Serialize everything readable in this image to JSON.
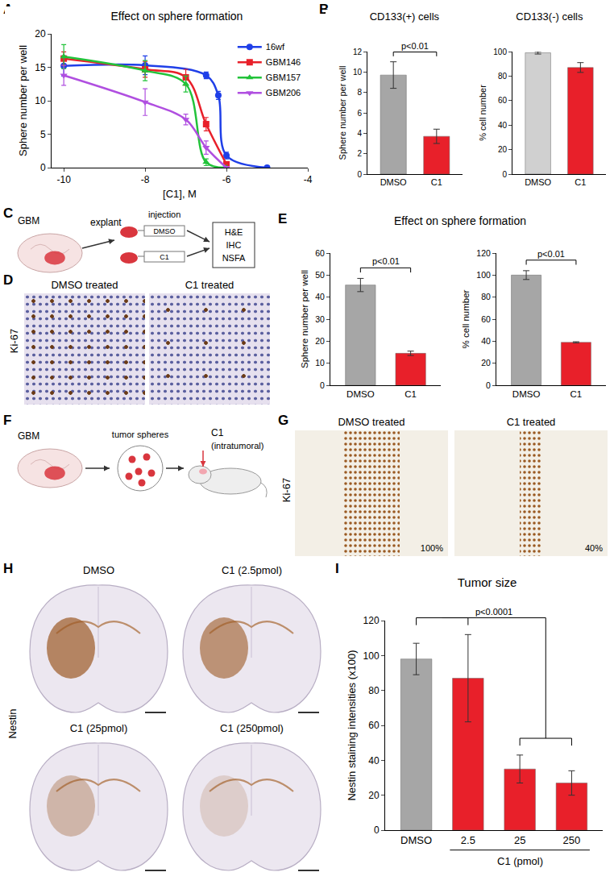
{
  "chart_data": [
    {
      "panel": "A",
      "type": "line",
      "title": "Effect on sphere formation",
      "x_label": "[C1], M",
      "y_label": "Sphere number per well",
      "xlim": [
        -10.3,
        -4
      ],
      "xticks": [
        -10,
        -8,
        -6,
        -4
      ],
      "ylim": [
        0,
        20
      ],
      "yticks": [
        0,
        5,
        10,
        15,
        20
      ],
      "grid": false,
      "legend": "upper right",
      "series": [
        {
          "name": "16wf",
          "color": "#1f3fe8",
          "marker": "circle",
          "x": [
            -10,
            -8,
            -6.5,
            -6.2,
            -6,
            -5
          ],
          "values": [
            15.2,
            15.3,
            13.8,
            10.8,
            1.8,
            0
          ],
          "errors": [
            1.5,
            1.4,
            0.5,
            0.6,
            0.5,
            0
          ]
        },
        {
          "name": "GBM146",
          "color": "#e8202a",
          "marker": "square",
          "x": [
            -10,
            -8,
            -7,
            -6.5,
            -6
          ],
          "values": [
            16.3,
            14.7,
            13.5,
            6.5,
            0.5
          ],
          "errors": [
            1,
            1.2,
            1.2,
            1,
            0.3
          ]
        },
        {
          "name": "GBM157",
          "color": "#22c33a",
          "marker": "triangle-up",
          "x": [
            -10,
            -8,
            -7,
            -6.5,
            -6
          ],
          "values": [
            16.6,
            14.5,
            12.5,
            0.8,
            0
          ],
          "errors": [
            1.8,
            1.5,
            1.2,
            0.5,
            0
          ]
        },
        {
          "name": "GBM206",
          "color": "#b04fe0",
          "marker": "triangle-down",
          "x": [
            -10,
            -8,
            -7,
            -6.5,
            -6
          ],
          "values": [
            13.8,
            9.8,
            7.2,
            3,
            0
          ],
          "errors": [
            1.5,
            2,
            0.8,
            1,
            0
          ]
        }
      ]
    },
    {
      "panel": "B",
      "type": "bar",
      "title": "CD133(+) cells",
      "y_label": "Sphere number per well",
      "categories": [
        "DMSO",
        "C1"
      ],
      "values": [
        9.7,
        3.7
      ],
      "errors": [
        1.3,
        0.7
      ],
      "colors": [
        "#a6a6a6",
        "#e8202a"
      ],
      "ylim": [
        0,
        12
      ],
      "yticks": [
        0,
        2,
        4,
        6,
        8,
        10,
        12
      ],
      "grid": false,
      "significance": [
        {
          "text": "p<0.01",
          "from": [
            "DMSO"
          ],
          "to": [
            "C1"
          ]
        }
      ]
    },
    {
      "panel": "B",
      "type": "bar",
      "title": "CD133(-) cells",
      "y_label": "% cell number",
      "categories": [
        "DMSO",
        "C1"
      ],
      "values": [
        99,
        87
      ],
      "errors": [
        1,
        4
      ],
      "colors": [
        "#d0d0d0",
        "#e8202a"
      ],
      "ylim": [
        0,
        100
      ],
      "yticks": [
        0,
        20,
        40,
        60,
        80,
        100
      ],
      "grid": false
    },
    {
      "panel": "E",
      "type": "bar",
      "title": "Effect on sphere formation",
      "y_label": "Sphere number per well",
      "categories": [
        "DMSO",
        "C1"
      ],
      "values": [
        45.5,
        14.5
      ],
      "errors": [
        3,
        1
      ],
      "colors": [
        "#a6a6a6",
        "#e8202a"
      ],
      "ylim": [
        0,
        60
      ],
      "yticks": [
        0,
        10,
        20,
        30,
        40,
        50,
        60
      ],
      "grid": false,
      "significance": [
        {
          "text": "p<0.01",
          "from": [
            "DMSO"
          ],
          "to": [
            "C1"
          ]
        }
      ]
    },
    {
      "panel": "E",
      "type": "bar",
      "y_label": "% cell number",
      "categories": [
        "DMSO",
        "C1"
      ],
      "values": [
        100,
        39
      ],
      "errors": [
        4,
        0.5
      ],
      "colors": [
        "#a6a6a6",
        "#e8202a"
      ],
      "ylim": [
        0,
        120
      ],
      "yticks": [
        0,
        20,
        40,
        60,
        80,
        100,
        120
      ],
      "grid": false,
      "significance": [
        {
          "text": "p<0.01",
          "from": [
            "DMSO"
          ],
          "to": [
            "C1"
          ]
        }
      ]
    },
    {
      "panel": "I",
      "type": "bar",
      "title": "Tumor size",
      "y_label": "Nestin staining intensities (x100)",
      "x_label": "C1 (pmol)",
      "x_label_span": [
        "2.5",
        "250"
      ],
      "categories": [
        "DMSO",
        "2.5",
        "25",
        "250"
      ],
      "values": [
        98,
        87,
        35,
        27
      ],
      "errors": [
        9,
        25,
        8,
        7
      ],
      "colors": [
        "#a6a6a6",
        "#e8202a",
        "#e8202a",
        "#e8202a"
      ],
      "ylim": [
        0,
        120
      ],
      "yticks": [
        0,
        20,
        40,
        60,
        80,
        100,
        120
      ],
      "grid": false,
      "significance": [
        {
          "text": "p<0.0001",
          "from": [
            "DMSO",
            "2.5"
          ],
          "to": [
            "25",
            "250"
          ]
        }
      ]
    }
  ],
  "figures": [
    {
      "panel": "C",
      "type": "diagram",
      "source": "GBM",
      "step": "explant",
      "action": "injection",
      "conditions": [
        "DMSO",
        "C1"
      ],
      "assays": [
        "H&E",
        "IHC",
        "NSFA"
      ]
    },
    {
      "panel": "D",
      "type": "images",
      "stain": "Ki-67",
      "captions": [
        "DMSO treated",
        "C1 treated"
      ]
    },
    {
      "panel": "F",
      "type": "diagram",
      "source": "GBM",
      "step": "tumor spheres",
      "drug": "C1",
      "route": "(intratumoral)"
    },
    {
      "panel": "G",
      "type": "images",
      "stain": "Ki-67",
      "captions": [
        "DMSO treated",
        "C1 treated"
      ],
      "values": [
        100,
        40
      ],
      "value_labels": [
        "100%",
        "40%"
      ]
    },
    {
      "panel": "H",
      "type": "images",
      "stain": "Nestin",
      "captions": [
        "DMSO",
        "C1 (2.5pmol)",
        "C1 (25pmol)",
        "C1 (250pmol)"
      ]
    }
  ]
}
